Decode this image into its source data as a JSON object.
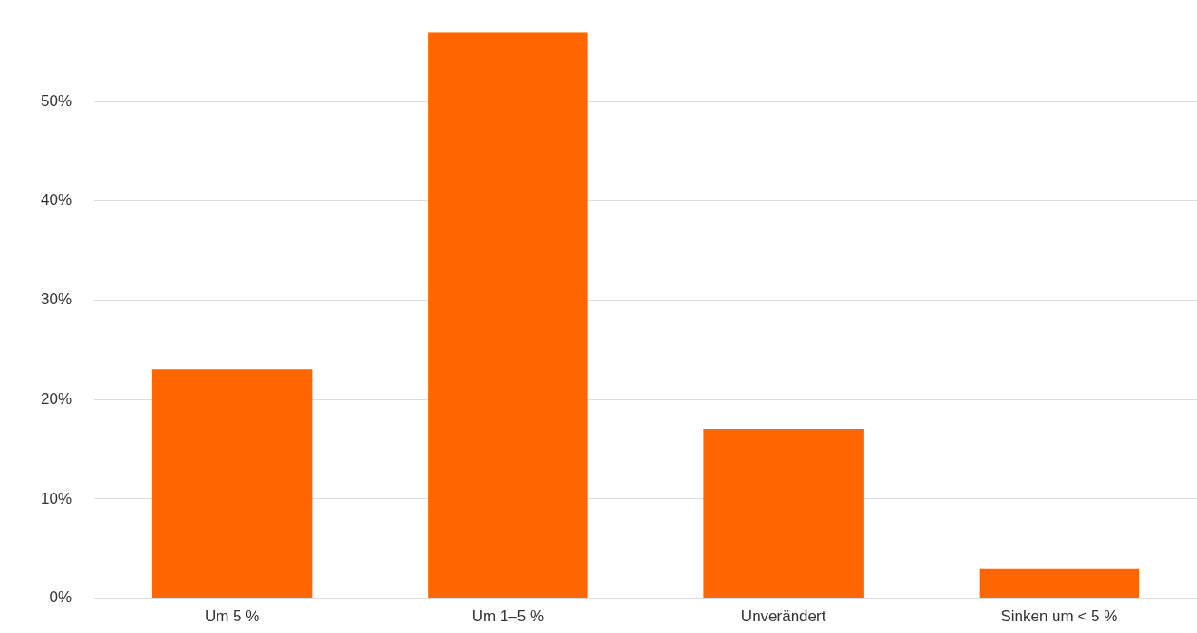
{
  "chart_data": {
    "type": "bar",
    "categories": [
      "Um 5 %",
      "Um 1–5 %",
      "Unverändert",
      "Sinken um < 5 %"
    ],
    "values": [
      23,
      57,
      17,
      3
    ],
    "color": "#ff6600",
    "ylim": [
      0,
      57
    ],
    "yticks": [
      {
        "value": 0,
        "label": "0%"
      },
      {
        "value": 10,
        "label": "10%"
      },
      {
        "value": 20,
        "label": "20%"
      },
      {
        "value": 30,
        "label": "30%"
      },
      {
        "value": 40,
        "label": "40%"
      },
      {
        "value": 50,
        "label": "50%"
      }
    ],
    "grid": "y",
    "legend": false
  }
}
